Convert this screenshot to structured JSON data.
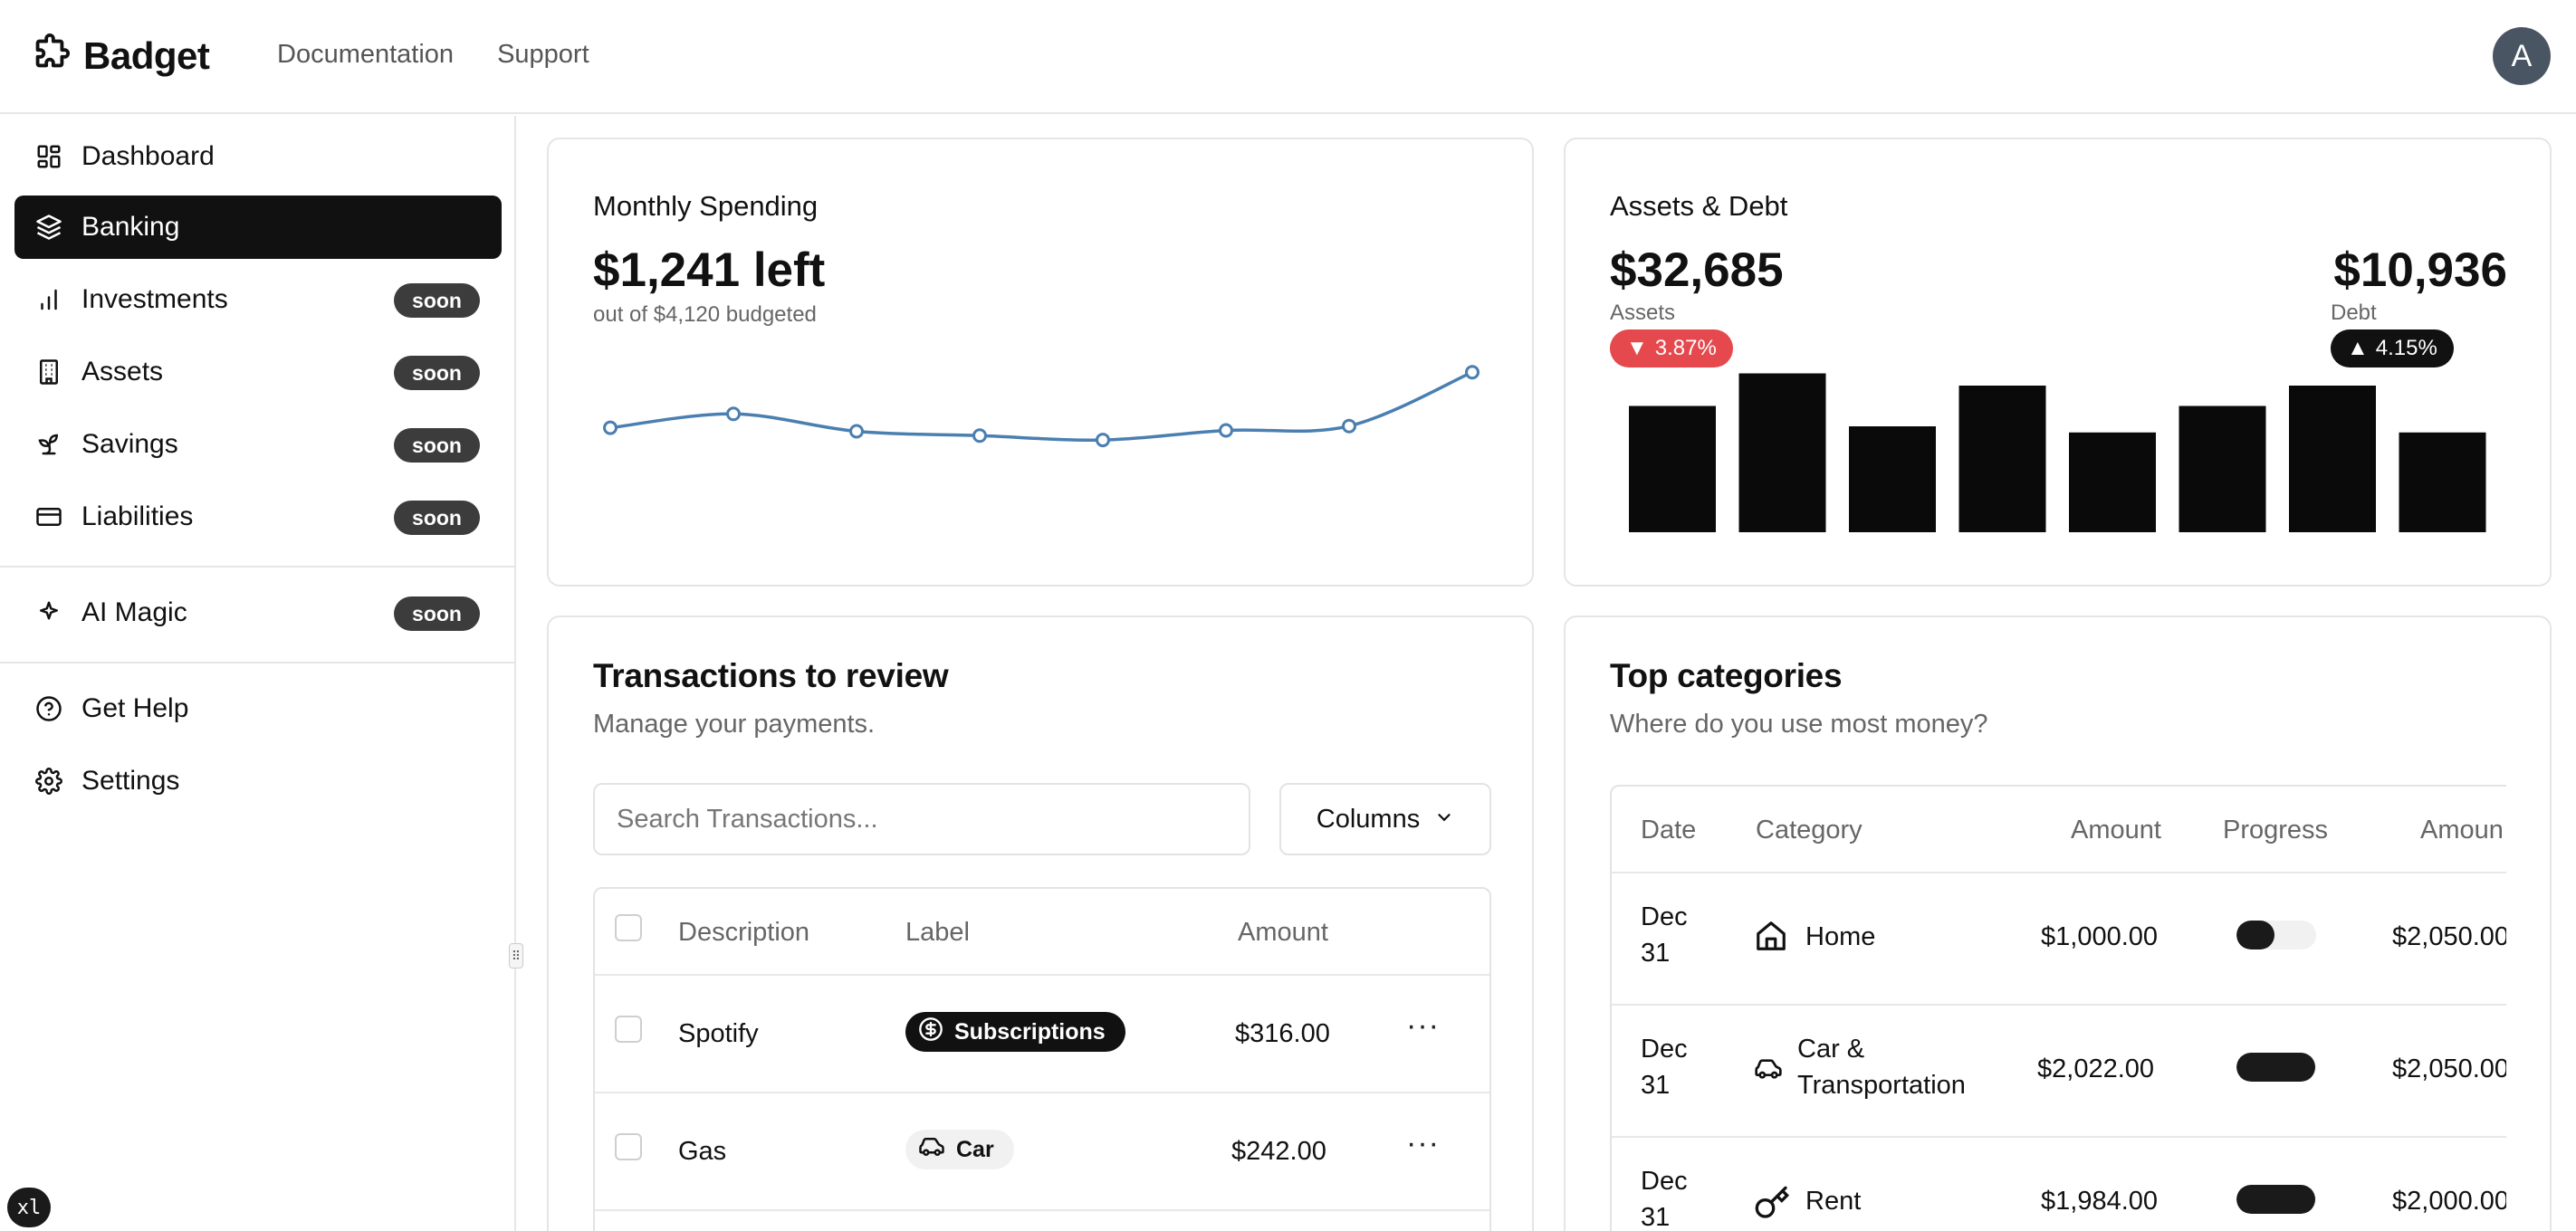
{
  "brand": {
    "name": "Badget"
  },
  "topnav": {
    "items": [
      "Documentation",
      "Support"
    ]
  },
  "user": {
    "avatar_letter": "A"
  },
  "sidebar": {
    "items": [
      {
        "label": "Dashboard",
        "icon": "dashboard-icon",
        "active": false,
        "badge": ""
      },
      {
        "label": "Banking",
        "icon": "layers-icon",
        "active": true,
        "badge": ""
      },
      {
        "label": "Investments",
        "icon": "bar-chart-icon",
        "active": false,
        "badge": "soon"
      },
      {
        "label": "Assets",
        "icon": "building-icon",
        "active": false,
        "badge": "soon"
      },
      {
        "label": "Savings",
        "icon": "sprout-icon",
        "active": false,
        "badge": "soon"
      },
      {
        "label": "Liabilities",
        "icon": "credit-card-icon",
        "active": false,
        "badge": "soon"
      },
      {
        "label": "AI Magic",
        "icon": "sparkle-icon",
        "active": false,
        "badge": "soon"
      },
      {
        "label": "Get Help",
        "icon": "help-circle-icon",
        "active": false,
        "badge": ""
      },
      {
        "label": "Settings",
        "icon": "gear-icon",
        "active": false,
        "badge": ""
      }
    ]
  },
  "monthly": {
    "title": "Monthly Spending",
    "amount": "$1,241 left",
    "sub": "out of $4,120 budgeted"
  },
  "assets_debt": {
    "title": "Assets & Debt",
    "assets_value": "$32,685",
    "assets_label": "Assets",
    "assets_change": "3.87%",
    "debt_value": "$10,936",
    "debt_label": "Debt",
    "debt_change": "4.15%"
  },
  "chart_data": [
    {
      "type": "line",
      "x": [
        1,
        2,
        3,
        4,
        5,
        6,
        7,
        8
      ],
      "series": [
        {
          "values": [
            58,
            66,
            56,
            53.5,
            51,
            56.5,
            59,
            90
          ]
        }
      ],
      "ylim": [
        0,
        100
      ],
      "color": "#4a7fb0"
    },
    {
      "type": "bar",
      "categories": [
        "1",
        "2",
        "3",
        "4",
        "5",
        "6",
        "7",
        "8"
      ],
      "values": [
        62,
        78,
        52,
        72,
        49,
        62,
        72,
        49
      ],
      "ylim": [
        0,
        80
      ],
      "color": "#0a0a0a"
    }
  ],
  "transactions": {
    "title": "Transactions to review",
    "subtitle": "Manage your payments.",
    "search_placeholder": "Search Transactions...",
    "columns_label": "Columns",
    "headers": {
      "description": "Description",
      "label": "Label",
      "amount": "Amount"
    },
    "rows": [
      {
        "description": "Spotify",
        "label": "Subscriptions",
        "label_icon": "dollar-circle-icon",
        "label_style": "dark",
        "amount": "$316.00"
      },
      {
        "description": "Gas",
        "label": "Car",
        "label_icon": "car-icon",
        "label_style": "light",
        "amount": "$242.00"
      }
    ]
  },
  "categories": {
    "title": "Top categories",
    "subtitle": "Where do you use most money?",
    "headers": {
      "date": "Date",
      "category": "Category",
      "amount": "Amount",
      "progress": "Progress",
      "amount2": "Amoun"
    },
    "rows": [
      {
        "date_l1": "Dec",
        "date_l2": "31",
        "icon": "home-icon",
        "category_l1": "Home",
        "category_l2": "",
        "amount": "$1,000.00",
        "progress": 0.48,
        "amount2": "$2,050.00"
      },
      {
        "date_l1": "Dec",
        "date_l2": "31",
        "icon": "car-icon",
        "category_l1": "Car &",
        "category_l2": "Transportation",
        "amount": "$2,022.00",
        "progress": 0.99,
        "amount2": "$2,050.00"
      },
      {
        "date_l1": "Dec",
        "date_l2": "31",
        "icon": "key-icon",
        "category_l1": "Rent",
        "category_l2": "",
        "amount": "$1,984.00",
        "progress": 0.99,
        "amount2": "$2,000.00"
      }
    ]
  },
  "dev_badge": "xl"
}
